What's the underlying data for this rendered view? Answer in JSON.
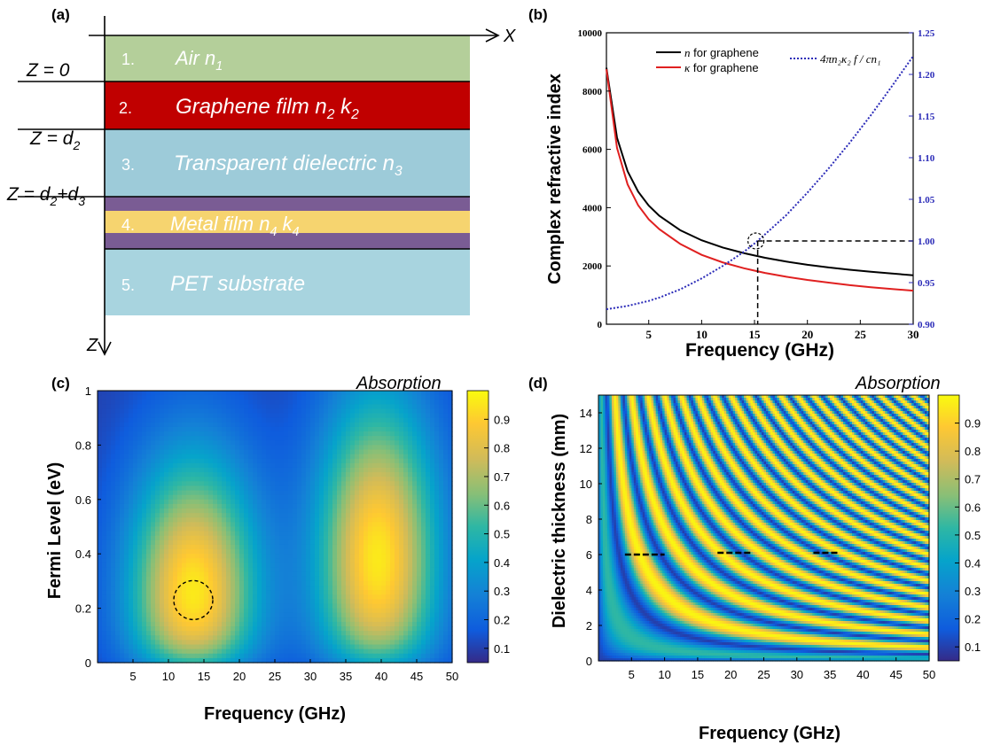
{
  "panel_a": {
    "tag": "(a)",
    "axis_x": "X",
    "axis_z": "Z",
    "layers": [
      {
        "num": "1.",
        "name": "Air",
        "sym": "n",
        "s1": "1",
        "sym2": "",
        "s2": "",
        "color": "#b4cf9a"
      },
      {
        "num": "2.",
        "name": "Graphene film",
        "sym": "n",
        "s1": "2",
        "sym2": "k",
        "s2": "2",
        "color": "#c00000"
      },
      {
        "num": "3.",
        "name": "Transparent dielectric",
        "sym": "n",
        "s1": "3",
        "sym2": "",
        "s2": "",
        "color": "#9dcbd9"
      },
      {
        "num": "4.",
        "name": "Metal film",
        "sym": "n",
        "s1": "4",
        "sym2": "k",
        "s2": "4",
        "color": "#f6d46f"
      },
      {
        "num": "5.",
        "name": "PET substrate",
        "sym": "",
        "s1": "",
        "sym2": "",
        "s2": "",
        "color": "#a8d4df"
      }
    ],
    "metal_border_color": "#7a5c94",
    "z_labels": {
      "z0": "Z = 0",
      "zd2_pre": "Z = d",
      "zd2_sub": "2",
      "zd23_pre": "Z = d",
      "zd23_sub1": "2",
      "zd23_mid": "+d",
      "zd23_sub2": "3"
    }
  },
  "panel_b": {
    "tag": "(b)",
    "chart_data": {
      "type": "line",
      "xlabel": "Frequency (GHz)",
      "ylabel": "Complex refractive index",
      "xlim": [
        1,
        30
      ],
      "ylim": [
        0,
        10000
      ],
      "y2lim": [
        0.9,
        1.25
      ],
      "xticks": [
        "5",
        "10",
        "15",
        "20",
        "25",
        "30"
      ],
      "yticks": [
        "0",
        "2000",
        "4000",
        "6000",
        "8000",
        "10000"
      ],
      "y2ticks": [
        "0.90",
        "0.95",
        "1.00",
        "1.05",
        "1.10",
        "1.15",
        "1.20",
        "1.25"
      ],
      "x": [
        1,
        2,
        3,
        4,
        5,
        6,
        8,
        10,
        12,
        14,
        15,
        16,
        18,
        20,
        22,
        24,
        26,
        28,
        30
      ],
      "series": [
        {
          "name": "n for graphene",
          "axis": "left",
          "color": "#000000",
          "values": [
            8800,
            6400,
            5250,
            4550,
            4070,
            3720,
            3220,
            2880,
            2630,
            2440,
            2360,
            2280,
            2150,
            2040,
            1950,
            1870,
            1800,
            1740,
            1680
          ]
        },
        {
          "name": "κ for graphene",
          "axis": "left",
          "color": "#e02020",
          "values": [
            8750,
            6050,
            4800,
            4080,
            3600,
            3260,
            2750,
            2380,
            2120,
            1920,
            1840,
            1760,
            1630,
            1520,
            1430,
            1340,
            1270,
            1210,
            1150
          ]
        },
        {
          "name": "4πn₂κ₂f / cn₁",
          "axis": "right",
          "color": "#2b2bb8",
          "dashed": true,
          "values": [
            0.918,
            0.92,
            0.922,
            0.925,
            0.928,
            0.932,
            0.942,
            0.955,
            0.97,
            0.987,
            0.997,
            1.008,
            1.031,
            1.058,
            1.087,
            1.118,
            1.151,
            1.186,
            1.222
          ]
        }
      ],
      "marker": {
        "x": 15.3,
        "y2": 1.0
      },
      "legend": "top"
    }
  },
  "panel_c": {
    "tag": "(c)",
    "cb_title": "Absorption",
    "chart_data": {
      "type": "heatmap",
      "xlabel": "Frequency (GHz)",
      "ylabel": "Fermi Level (eV)",
      "xlim": [
        0,
        50
      ],
      "ylim": [
        0,
        1
      ],
      "xticks": [
        "5",
        "10",
        "15",
        "20",
        "25",
        "30",
        "35",
        "40",
        "45",
        "50"
      ],
      "yticks": [
        "0",
        "0.2",
        "0.4",
        "0.6",
        "0.8",
        "1"
      ],
      "colorbar_ticks": [
        "0.1",
        "0.2",
        "0.3",
        "0.4",
        "0.5",
        "0.6",
        "0.7",
        "0.8",
        "0.9"
      ],
      "colorbar_range": [
        0.05,
        1.0
      ],
      "peaks": [
        {
          "x": 13.5,
          "y": 0.23
        },
        {
          "x": 39.5,
          "y": 0.37
        }
      ],
      "minimum_x": 27.5,
      "marker_circle": {
        "x": 13.5,
        "y": 0.23
      }
    }
  },
  "panel_d": {
    "tag": "(d)",
    "cb_title": "Absorption",
    "chart_data": {
      "type": "heatmap",
      "xlabel": "Frequency (GHz)",
      "ylabel": "Dielectric thickness (mm)",
      "xlim": [
        0,
        50
      ],
      "ylim": [
        0,
        15
      ],
      "xticks": [
        "5",
        "10",
        "15",
        "20",
        "25",
        "30",
        "35",
        "40",
        "45",
        "50"
      ],
      "yticks": [
        "0",
        "2",
        "4",
        "6",
        "8",
        "10",
        "12",
        "14"
      ],
      "colorbar_ticks": [
        "0.1",
        "0.2",
        "0.3",
        "0.4",
        "0.5",
        "0.6",
        "0.7",
        "0.8",
        "0.9"
      ],
      "colorbar_range": [
        0.05,
        1.0
      ],
      "fringe_constant": 37.5,
      "markers": [
        {
          "x0": 4,
          "x1": 10,
          "y": 6
        },
        {
          "x0": 18,
          "x1": 23,
          "y": 6.1
        },
        {
          "x0": 32.5,
          "x1": 36.5,
          "y": 6.1
        }
      ]
    }
  }
}
